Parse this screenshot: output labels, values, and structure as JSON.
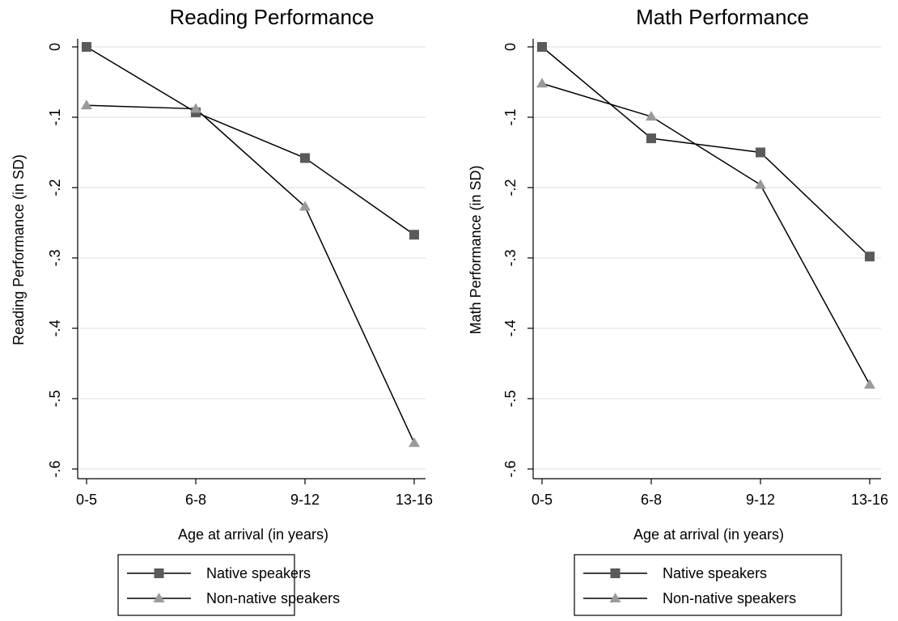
{
  "chart_data": [
    {
      "type": "line",
      "title": "Reading Performance",
      "xlabel": "Age at arrival (in years)",
      "ylabel": "Reading Performance (in SD)",
      "categories": [
        "0-5",
        "6-8",
        "9-12",
        "13-16"
      ],
      "ylim": [
        -0.6,
        0
      ],
      "yticks": [
        0,
        -0.1,
        -0.2,
        -0.3,
        -0.4,
        -0.5,
        -0.6
      ],
      "ytick_labels": [
        "0",
        "-.1",
        "-.2",
        "-.3",
        "-.4",
        "-.5",
        "-.6"
      ],
      "grid": true,
      "legend_position": "bottom",
      "series": [
        {
          "name": "Native speakers",
          "marker": "square",
          "color": "#5a5a5a",
          "values": [
            0.0,
            -0.093,
            -0.158,
            -0.267
          ]
        },
        {
          "name": "Non-native speakers",
          "marker": "triangle",
          "color": "#9a9a9a",
          "values": [
            -0.083,
            -0.088,
            -0.227,
            -0.563
          ]
        }
      ]
    },
    {
      "type": "line",
      "title": "Math Performance",
      "xlabel": "Age at arrival (in years)",
      "ylabel": "Math Performance (in SD)",
      "categories": [
        "0-5",
        "6-8",
        "9-12",
        "13-16"
      ],
      "ylim": [
        -0.6,
        0
      ],
      "yticks": [
        0,
        -0.1,
        -0.2,
        -0.3,
        -0.4,
        -0.5,
        -0.6
      ],
      "ytick_labels": [
        "0",
        "-.1",
        "-.2",
        "-.3",
        "-.4",
        "-.5",
        "-.6"
      ],
      "grid": true,
      "legend_position": "bottom",
      "series": [
        {
          "name": "Native speakers",
          "marker": "square",
          "color": "#5a5a5a",
          "values": [
            0.0,
            -0.13,
            -0.15,
            -0.298
          ]
        },
        {
          "name": "Non-native speakers",
          "marker": "triangle",
          "color": "#9a9a9a",
          "values": [
            -0.052,
            -0.099,
            -0.196,
            -0.48
          ]
        }
      ]
    }
  ]
}
